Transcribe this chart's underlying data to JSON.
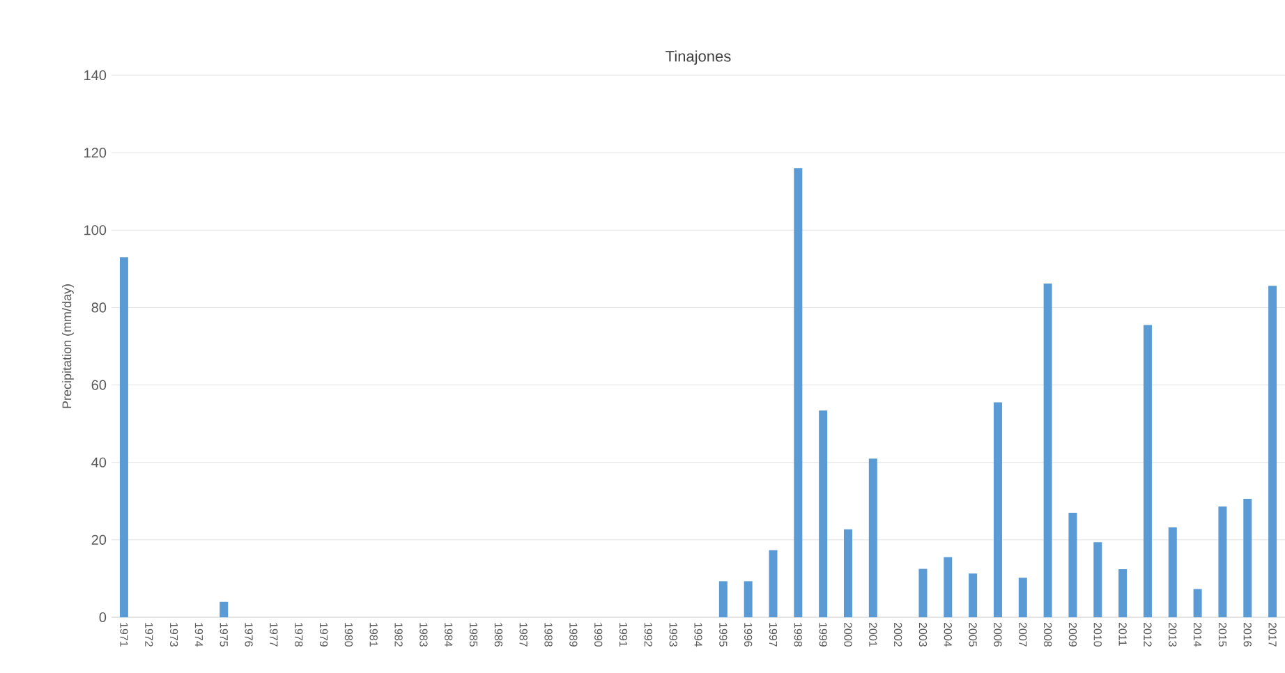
{
  "chart_data": {
    "type": "bar",
    "title": "Tinajones",
    "ylabel": "Precipitation (mm/day)",
    "categories": [
      "1971",
      "1972",
      "1973",
      "1974",
      "1975",
      "1976",
      "1977",
      "1978",
      "1979",
      "1980",
      "1981",
      "1982",
      "1983",
      "1984",
      "1985",
      "1986",
      "1987",
      "1988",
      "1989",
      "1990",
      "1991",
      "1992",
      "1993",
      "1994",
      "1995",
      "1996",
      "1997",
      "1998",
      "1999",
      "2000",
      "2001",
      "2002",
      "2003",
      "2004",
      "2005",
      "2006",
      "2007",
      "2008",
      "2009",
      "2010",
      "2011",
      "2012",
      "2013",
      "2014",
      "2015",
      "2016",
      "2017"
    ],
    "values": [
      93,
      0,
      0,
      0,
      4,
      0,
      0,
      0,
      0,
      0,
      0,
      0,
      0,
      0,
      0,
      0,
      0,
      0,
      0,
      0,
      0,
      0,
      0,
      0,
      9.3,
      9.3,
      17.3,
      116,
      53.4,
      22.7,
      41,
      0,
      12.5,
      15.5,
      11.3,
      55.5,
      10.2,
      86.2,
      27,
      19.4,
      12.4,
      75.5,
      23.2,
      7.3,
      28.6,
      30.6,
      85.6
    ],
    "color": "#5b9bd5",
    "ylim": [
      0,
      140
    ],
    "yticks": [
      0,
      20,
      40,
      60,
      80,
      100,
      120,
      140
    ],
    "grid": "y"
  }
}
